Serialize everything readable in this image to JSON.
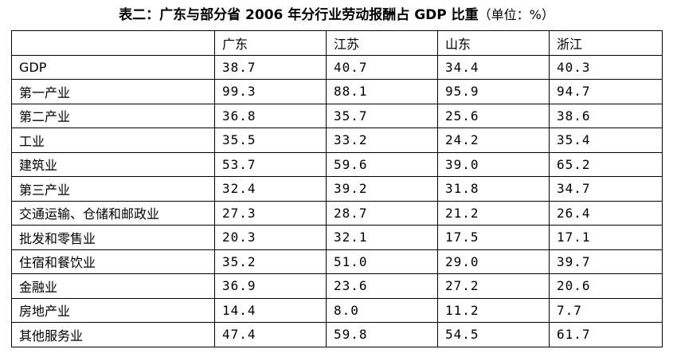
{
  "title": {
    "main": "表二：广东与部分省 2006 年分行业劳动报酬占 GDP 比重",
    "unit": "（单位：%）"
  },
  "table": {
    "header": [
      "",
      "广东",
      "江苏",
      "山东",
      "浙江"
    ],
    "rows": [
      {
        "label": "GDP",
        "values": [
          "38.7",
          "40.7",
          "34.4",
          "40.3"
        ]
      },
      {
        "label": "第一产业",
        "values": [
          "99.3",
          "88.1",
          "95.9",
          "94.7"
        ]
      },
      {
        "label": "第二产业",
        "values": [
          "36.8",
          "35.7",
          "25.6",
          "38.6"
        ]
      },
      {
        "label": "工业",
        "values": [
          "35.5",
          "33.2",
          "24.2",
          "35.4"
        ]
      },
      {
        "label": "建筑业",
        "values": [
          "53.7",
          "59.6",
          "39.0",
          "65.2"
        ]
      },
      {
        "label": "第三产业",
        "values": [
          "32.4",
          "39.2",
          "31.8",
          "34.7"
        ]
      },
      {
        "label": "交通运输、仓储和邮政业",
        "values": [
          "27.3",
          "28.7",
          "21.2",
          "26.4"
        ]
      },
      {
        "label": "批发和零售业",
        "values": [
          "20.3",
          "32.1",
          "17.5",
          "17.1"
        ]
      },
      {
        "label": "住宿和餐饮业",
        "values": [
          "35.2",
          "51.0",
          "29.0",
          "39.7"
        ]
      },
      {
        "label": "金融业",
        "values": [
          "36.9",
          "23.6",
          "27.2",
          "20.6"
        ]
      },
      {
        "label": "房地产业",
        "values": [
          "14.4",
          "8.0",
          "11.2",
          "7.7"
        ]
      },
      {
        "label": "其他服务业",
        "values": [
          "47.4",
          "59.8",
          "54.5",
          "61.7"
        ]
      }
    ]
  }
}
